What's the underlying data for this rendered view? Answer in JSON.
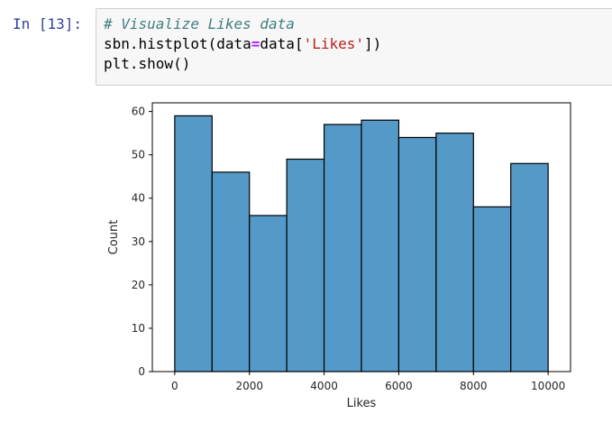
{
  "prompt": {
    "label": "In [13]:"
  },
  "code": {
    "line1": "# Visualize Likes data",
    "line2_a": "sbn.histplot(data",
    "line2_op": "=",
    "line2_b": "data[",
    "line2_str": "'Likes'",
    "line2_c": "])",
    "line3": "plt.show()"
  },
  "colors": {
    "bar_fill": "#5499c7",
    "bar_edge": "#000000",
    "prompt": "#303f9f"
  },
  "chart_data": {
    "type": "bar",
    "title": "",
    "xlabel": "Likes",
    "ylabel": "Count",
    "bins": [
      {
        "start": 0,
        "end": 1000,
        "count": 59
      },
      {
        "start": 1000,
        "end": 2000,
        "count": 46
      },
      {
        "start": 2000,
        "end": 3000,
        "count": 36
      },
      {
        "start": 3000,
        "end": 4000,
        "count": 49
      },
      {
        "start": 4000,
        "end": 5000,
        "count": 57
      },
      {
        "start": 5000,
        "end": 6000,
        "count": 58
      },
      {
        "start": 6000,
        "end": 7000,
        "count": 54
      },
      {
        "start": 7000,
        "end": 8000,
        "count": 55
      },
      {
        "start": 8000,
        "end": 9000,
        "count": 38
      },
      {
        "start": 9000,
        "end": 10000,
        "count": 48
      }
    ],
    "xlim": [
      -600,
      10600
    ],
    "ylim": [
      0,
      62
    ],
    "xticks": [
      0,
      2000,
      4000,
      6000,
      8000,
      10000
    ],
    "yticks": [
      0,
      10,
      20,
      30,
      40,
      50,
      60
    ],
    "grid": false,
    "legend": "none"
  }
}
